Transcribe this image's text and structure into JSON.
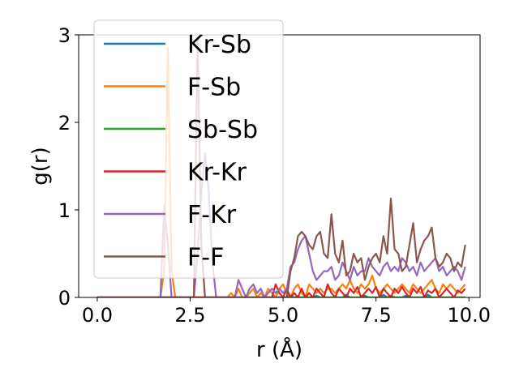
{
  "chart_data": {
    "type": "line",
    "title": "",
    "xlabel": "r (Å)",
    "ylabel": "g(r)",
    "xlim": [
      -0.5,
      10.3
    ],
    "ylim": [
      0,
      3.0
    ],
    "xticks": [
      0.0,
      2.5,
      5.0,
      7.5,
      10.0
    ],
    "xtick_labels": [
      "0.0",
      "2.5",
      "5.0",
      "7.5",
      "10.0"
    ],
    "yticks": [
      0,
      1,
      2,
      3
    ],
    "ytick_labels": [
      "0",
      "1",
      "2",
      "3"
    ],
    "grid": false,
    "legend_position": "top-left",
    "x": [
      0.0,
      0.1,
      0.2,
      0.3,
      0.4,
      0.5,
      0.6,
      0.7,
      0.8,
      0.9,
      1.0,
      1.1,
      1.2,
      1.3,
      1.4,
      1.5,
      1.6,
      1.7,
      1.8,
      1.9,
      2.0,
      2.1,
      2.2,
      2.3,
      2.4,
      2.5,
      2.6,
      2.7,
      2.8,
      2.9,
      3.0,
      3.1,
      3.2,
      3.3,
      3.4,
      3.5,
      3.6,
      3.7,
      3.8,
      3.9,
      4.0,
      4.1,
      4.2,
      4.3,
      4.4,
      4.5,
      4.6,
      4.7,
      4.8,
      4.9,
      5.0,
      5.1,
      5.2,
      5.3,
      5.4,
      5.5,
      5.6,
      5.7,
      5.8,
      5.9,
      6.0,
      6.1,
      6.2,
      6.3,
      6.4,
      6.5,
      6.6,
      6.7,
      6.8,
      6.9,
      7.0,
      7.1,
      7.2,
      7.3,
      7.4,
      7.5,
      7.6,
      7.7,
      7.8,
      7.9,
      8.0,
      8.1,
      8.2,
      8.3,
      8.4,
      8.5,
      8.6,
      8.7,
      8.8,
      8.9,
      9.0,
      9.1,
      9.2,
      9.3,
      9.4,
      9.5,
      9.6,
      9.7,
      9.8,
      9.9
    ],
    "series": [
      {
        "name": "Kr-Sb",
        "color": "#1f77b4",
        "values": [
          0,
          0,
          0,
          0,
          0,
          0,
          0,
          0,
          0,
          0,
          0,
          0,
          0,
          0,
          0,
          0,
          0,
          0,
          0,
          0,
          0,
          0,
          0,
          0,
          0,
          0,
          0,
          0,
          0,
          0,
          0,
          0,
          0,
          0,
          0,
          0,
          0,
          0,
          0,
          0,
          0,
          0,
          0,
          0,
          0,
          0,
          0,
          0,
          0,
          0,
          0,
          0,
          0.02,
          0,
          0,
          0,
          0,
          0,
          0,
          0.02,
          0,
          0,
          0,
          0,
          0,
          0,
          0,
          0.03,
          0,
          0,
          0,
          0,
          0.02,
          0,
          0,
          0,
          0,
          0.03,
          0,
          0,
          0,
          0,
          0,
          0.02,
          0,
          0,
          0,
          0,
          0,
          0.03,
          0,
          0,
          0,
          0,
          0,
          0,
          0,
          0,
          0,
          0
        ]
      },
      {
        "name": "F-Sb",
        "color": "#ff7f0e",
        "values": [
          0,
          0,
          0,
          0,
          0,
          0,
          0,
          0,
          0,
          0,
          0,
          0,
          0,
          0,
          0,
          0,
          0,
          0,
          0.3,
          2.85,
          0.3,
          0,
          0,
          0,
          0,
          0,
          0,
          0,
          0,
          0,
          0,
          0,
          0,
          0,
          0,
          0,
          0.05,
          0,
          0.1,
          0,
          0,
          0.05,
          0.1,
          0,
          0.05,
          0,
          0.1,
          0.05,
          0,
          0.1,
          0.15,
          0.05,
          0,
          0.1,
          0.15,
          0.05,
          0,
          0.15,
          0.1,
          0.05,
          0.1,
          0.05,
          0.1,
          0.1,
          0.05,
          0.1,
          0.15,
          0.1,
          0.2,
          0.1,
          0.05,
          0.15,
          0.1,
          0.15,
          0.25,
          0.1,
          0.05,
          0.1,
          0.15,
          0.1,
          0.05,
          0.1,
          0.15,
          0.1,
          0.05,
          0.15,
          0.1,
          0.05,
          0.1,
          0.15,
          0.2,
          0.1,
          0.05,
          0.15,
          0.1,
          0.15,
          0.1,
          0.05,
          0.1,
          0.15
        ]
      },
      {
        "name": "Sb-Sb",
        "color": "#2ca02c",
        "values": [
          0,
          0,
          0,
          0,
          0,
          0,
          0,
          0,
          0,
          0,
          0,
          0,
          0,
          0,
          0,
          0,
          0,
          0,
          0,
          0,
          0,
          0,
          0,
          0,
          0,
          0,
          0,
          0,
          0,
          0,
          0,
          0,
          0,
          0,
          0,
          0,
          0,
          0,
          0,
          0,
          0,
          0,
          0,
          0,
          0,
          0,
          0,
          0,
          0,
          0,
          0,
          0,
          0,
          0,
          0,
          0,
          0,
          0,
          0,
          0,
          0,
          0,
          0,
          0,
          0,
          0,
          0,
          0,
          0,
          0,
          0,
          0,
          0,
          0,
          0,
          0,
          0,
          0,
          0,
          0.02,
          0,
          0,
          0,
          0,
          0,
          0,
          0,
          0,
          0,
          0,
          0,
          0,
          0,
          0,
          0,
          0,
          0,
          0,
          0,
          0
        ]
      },
      {
        "name": "Kr-Kr",
        "color": "#d62728",
        "values": [
          0,
          0,
          0,
          0,
          0,
          0,
          0,
          0,
          0,
          0,
          0,
          0,
          0,
          0,
          0,
          0,
          0,
          0,
          0,
          0,
          0,
          0,
          0,
          0,
          0,
          0,
          0,
          0,
          0,
          0,
          0,
          0,
          0,
          0,
          0,
          0,
          0,
          0,
          0,
          0,
          0,
          0,
          0,
          0,
          0,
          0,
          0,
          0,
          0.15,
          0.05,
          0,
          0.1,
          0,
          0.05,
          0,
          0.1,
          0,
          0.05,
          0,
          0.1,
          0.05,
          0,
          0.15,
          0.05,
          0,
          0.1,
          0.05,
          0,
          0.1,
          0.05,
          0.12,
          0,
          0.05,
          0.1,
          0.05,
          0.12,
          0,
          0.1,
          0.05,
          0,
          0.1,
          0.05,
          0.12,
          0.05,
          0,
          0.1,
          0.05,
          0.12,
          0,
          0.08,
          0.05,
          0.1,
          0,
          0.05,
          0.1,
          0.05,
          0,
          0.08,
          0.05,
          0.1
        ]
      },
      {
        "name": "F-Kr",
        "color": "#9467bd",
        "values": [
          0,
          0,
          0,
          0,
          0,
          0,
          0,
          0,
          0,
          0,
          0,
          0,
          0,
          0,
          0,
          0,
          0,
          0,
          1.05,
          0.6,
          0,
          0,
          0,
          0,
          0,
          0,
          0,
          0.5,
          1.2,
          1.65,
          1.2,
          0.4,
          0,
          0,
          0,
          0,
          0,
          0,
          0.2,
          0.1,
          0,
          0.1,
          0.15,
          0.05,
          0.1,
          0,
          0.05,
          0.1,
          0.05,
          0.1,
          0.05,
          0.1,
          0.35,
          0.4,
          0.55,
          0.65,
          0.7,
          0.5,
          0.3,
          0.2,
          0.25,
          0.3,
          0.3,
          0.35,
          0.2,
          0.25,
          0.4,
          0.3,
          0.2,
          0.35,
          0.25,
          0.3,
          0.3,
          0.45,
          0.35,
          0.3,
          0.25,
          0.35,
          0.4,
          0.3,
          0.35,
          0.3,
          0.45,
          0.4,
          0.3,
          0.35,
          0.25,
          0.4,
          0.3,
          0.35,
          0.4,
          0.45,
          0.3,
          0.35,
          0.25,
          0.3,
          0.35,
          0.3,
          0.2,
          0.35
        ]
      },
      {
        "name": "F-F",
        "color": "#8c564b",
        "values": [
          0,
          0,
          0,
          0,
          0,
          0,
          0,
          0,
          0,
          0,
          0,
          0,
          0,
          0,
          0,
          0,
          0,
          0,
          0,
          0,
          0,
          0,
          0,
          0,
          0,
          0,
          0,
          2.95,
          0.6,
          0,
          0,
          0,
          0,
          0,
          0,
          0,
          0,
          0,
          0,
          0,
          0,
          0,
          0,
          0,
          0,
          0,
          0,
          0,
          0,
          0,
          0,
          0,
          0.3,
          0.45,
          0.7,
          0.75,
          0.7,
          0.6,
          0.55,
          0.7,
          0.75,
          0.5,
          0.45,
          0.95,
          0.5,
          0.4,
          0.65,
          0.25,
          0.3,
          0.5,
          0.4,
          0.45,
          0.2,
          0.35,
          0.45,
          0.5,
          0.4,
          0.7,
          0.5,
          1.13,
          0.55,
          0.5,
          0.3,
          0.35,
          0.6,
          0.85,
          0.4,
          0.55,
          0.65,
          0.7,
          0.8,
          0.45,
          0.35,
          0.4,
          0.5,
          0.45,
          0.3,
          0.4,
          0.35,
          0.6
        ]
      }
    ]
  }
}
